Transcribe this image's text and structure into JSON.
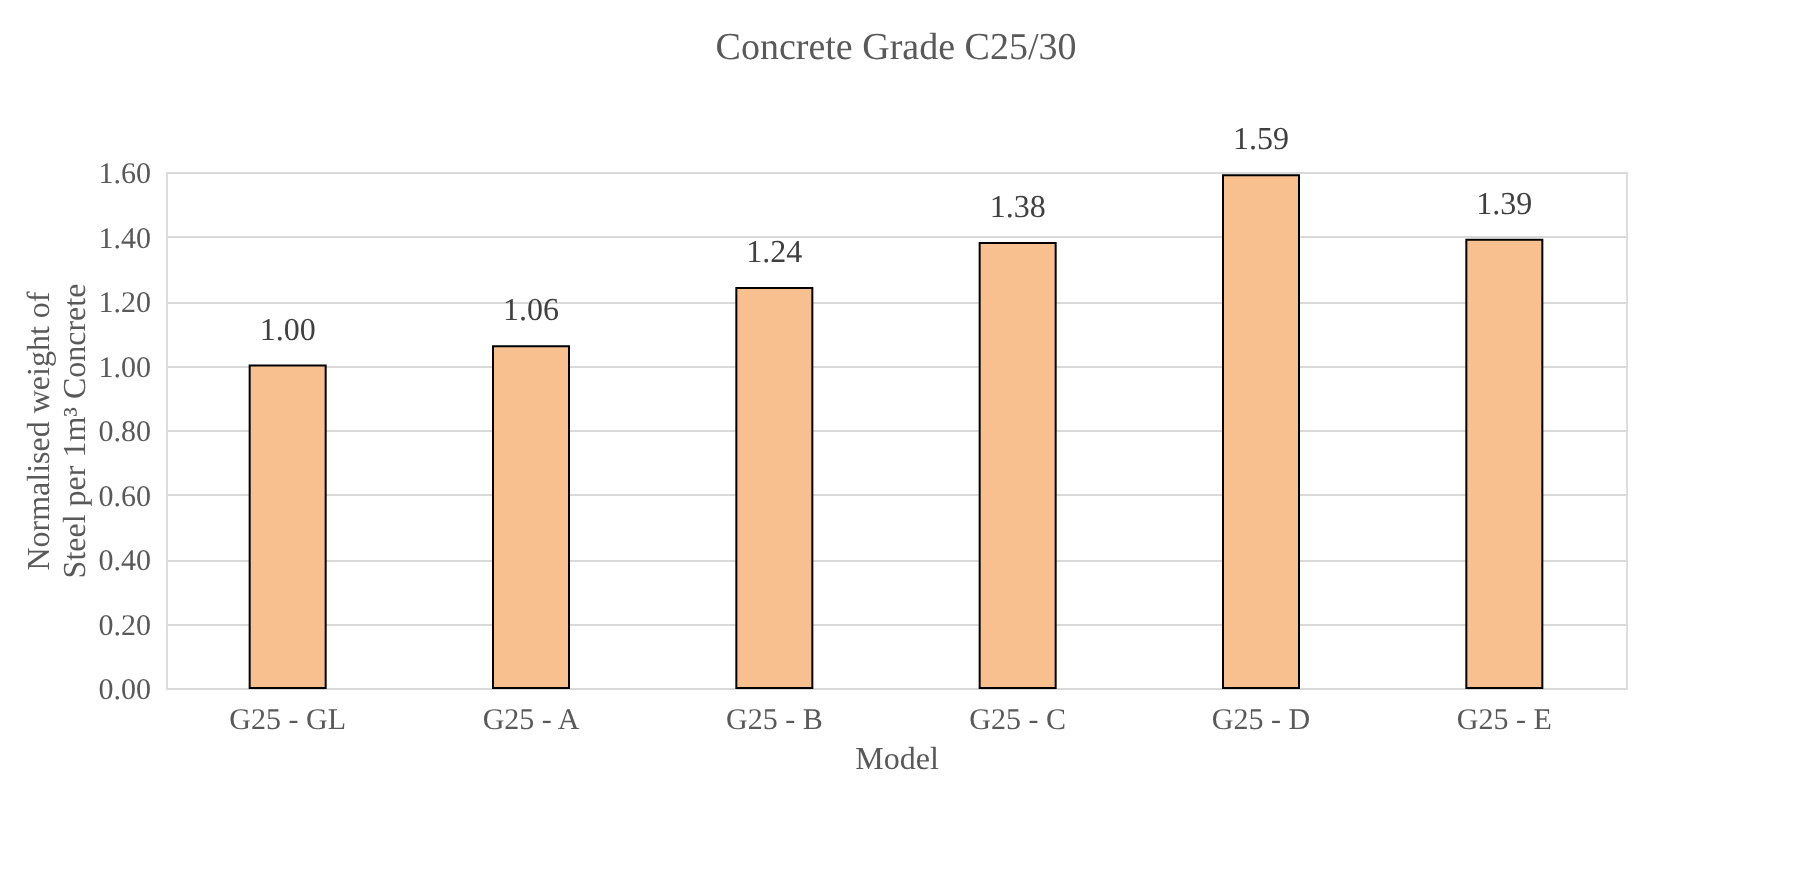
{
  "chart_data": {
    "type": "bar",
    "title": "Concrete Grade C25/30",
    "xlabel": "Model",
    "ylabel": "Normalised weight of Steel per 1m³ Concrete",
    "categories": [
      "G25 - GL",
      "G25 - A",
      "G25 - B",
      "G25 - C",
      "G25 - D",
      "G25 - E"
    ],
    "values": [
      1.0,
      1.06,
      1.24,
      1.38,
      1.59,
      1.39
    ],
    "color": "#f8bf8f",
    "ylim": [
      0,
      1.6
    ],
    "yticks": [
      {
        "value": 0,
        "label": "0.00"
      },
      {
        "value": 0.2,
        "label": "0.20"
      },
      {
        "value": 0.4,
        "label": "0.40"
      },
      {
        "value": 0.6,
        "label": "0.60"
      },
      {
        "value": 0.8,
        "label": "0.80"
      },
      {
        "value": 1.0,
        "label": "1.00"
      },
      {
        "value": 1.2,
        "label": "1.20"
      },
      {
        "value": 1.4,
        "label": "1.40"
      },
      {
        "value": 1.6,
        "label": "1.60"
      }
    ],
    "value_labels": [
      "1.00",
      "1.06",
      "1.24",
      "1.38",
      "1.59",
      "1.39"
    ],
    "grid": "y"
  }
}
